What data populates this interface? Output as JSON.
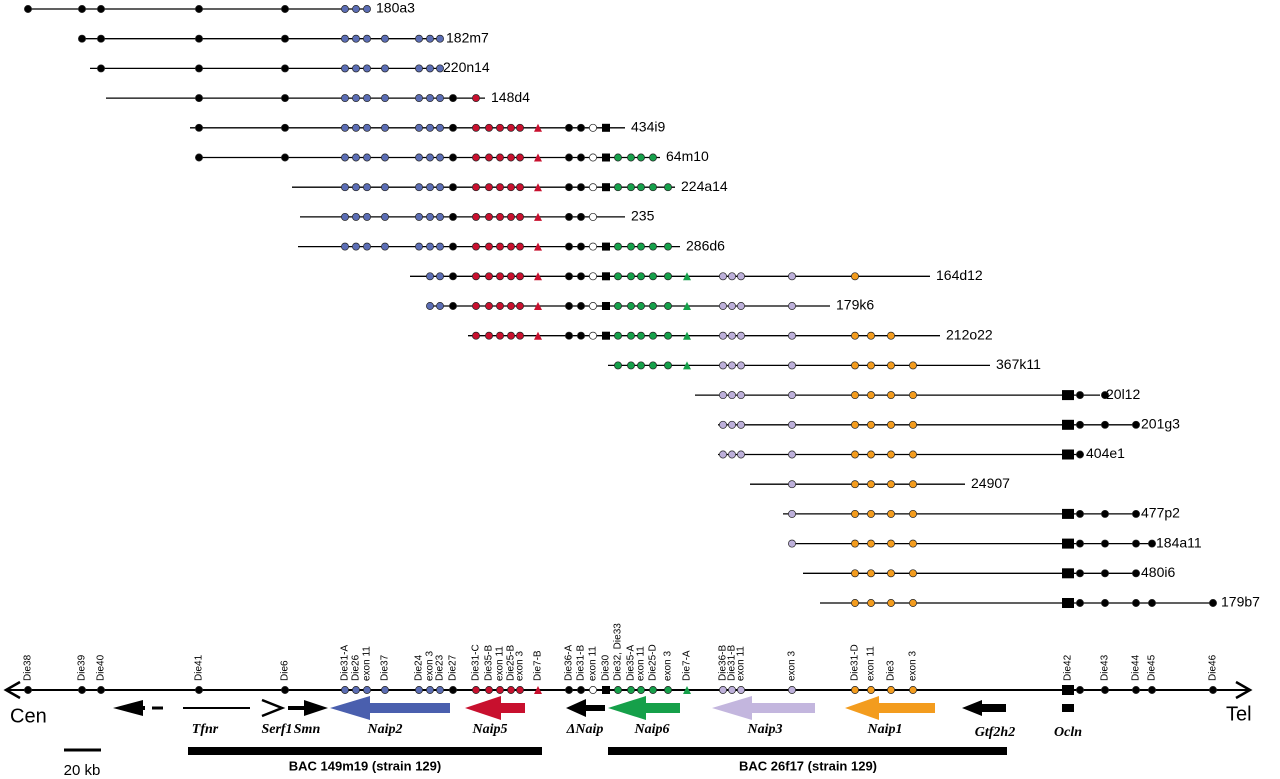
{
  "clones": [
    "180a3",
    "182m7",
    "220n14",
    "148d4",
    "434i9",
    "64m10",
    "224a14",
    "235",
    "286d6",
    "164d12",
    "179k6",
    "212o22",
    "367k11",
    "20l12",
    "201g3",
    "404e1",
    "24907",
    "477p2",
    "184a11",
    "480i6",
    "179b7"
  ],
  "markers": [
    "Die38",
    "Die39",
    "Die40",
    "Die41",
    "Die6",
    "Die31-A",
    "Die26",
    "exon 11",
    "Die37",
    "Die24",
    "exon 3",
    "Die23",
    "Die27",
    "Die31-C",
    "Die35-B",
    "exon 11",
    "Die25-B",
    "exon 3",
    "Die7-B",
    "Die36-A",
    "Die31-B",
    "exon 11",
    "Die30",
    "Die32, Die33",
    "Die35-A",
    "exon 11",
    "Die25-D",
    "exon 3",
    "Die7-A",
    "Die36-B",
    "Die31-B",
    "exon 11",
    "exon 3",
    "Die31-D",
    "exon 11",
    "Die3",
    "exon 3",
    "Die42",
    "Die43",
    "Die44",
    "Die45",
    "Die46"
  ],
  "axis": {
    "left": "Cen",
    "right": "Tel"
  },
  "genes": [
    "Tfnr",
    "Serf1",
    "Smn",
    "Naip2",
    "Naip5",
    "ΔNaip",
    "Naip6",
    "Naip3",
    "Naip1",
    "Gtf2h2",
    "Ocln"
  ],
  "scale": "20 kb",
  "bacs": [
    "BAC 149m19 (strain 129)",
    "BAC 26f17 (strain 129)"
  ]
}
